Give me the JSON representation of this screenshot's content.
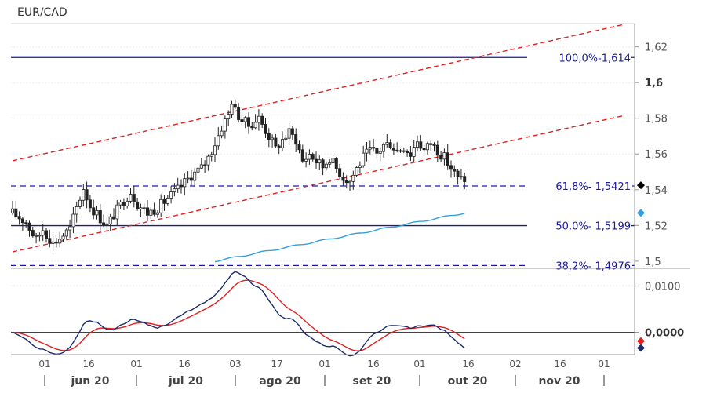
{
  "chart_data": {
    "type": "candlestick",
    "title": "EUR/CAD",
    "price_axis": {
      "ylim": [
        1.496,
        1.633
      ],
      "ticks": [
        1.5,
        1.52,
        1.54,
        1.56,
        1.58,
        1.6,
        1.62
      ],
      "tick_labels": [
        "1,5",
        "1,52",
        "1,54",
        "1,56",
        "1,58",
        "1,6",
        "1,62"
      ],
      "bold_tick": "1,6"
    },
    "osc_axis": {
      "ylim": [
        -0.0045,
        0.0135
      ],
      "ticks": [
        0.0,
        0.01
      ],
      "tick_labels": [
        "0,0000",
        "0,0100"
      ],
      "bold_tick": "0,0000"
    },
    "x_axis": {
      "day_ticks": [
        "01",
        "16",
        "01",
        "16",
        "03",
        "17",
        "01",
        "16",
        "01",
        "16",
        "02",
        "16",
        "01"
      ],
      "months": [
        "jun 20",
        "jul 20",
        "ago 20",
        "set 20",
        "out 20",
        "nov 20"
      ]
    },
    "fib_levels": [
      {
        "label": "100,0%-1,614",
        "value": 1.614,
        "style": "solid"
      },
      {
        "label": "61,8%- 1,5421",
        "value": 1.5421,
        "style": "dashed"
      },
      {
        "label": "50,0%- 1,5199",
        "value": 1.5199,
        "style": "solid"
      },
      {
        "label": "38,2%- 1,4976",
        "value": 1.4976,
        "style": "dashed"
      }
    ],
    "channel_lines": [
      {
        "from": [
          0,
          1.5052
        ],
        "to": [
          181,
          1.5814
        ]
      },
      {
        "from": [
          0,
          1.5562
        ],
        "to": [
          181,
          1.6324
        ]
      }
    ],
    "moving_average": {
      "from": [
        60,
        1.5
      ],
      "to": [
        134,
        1.527
      ]
    },
    "ohlc": [],
    "oscillator": {
      "macd": [],
      "signal": []
    },
    "markers": [
      {
        "axis": "price",
        "value": 1.5425,
        "color": "#000000"
      },
      {
        "axis": "price",
        "value": 1.527,
        "color": "#30a0e0"
      },
      {
        "axis": "osc",
        "value": -0.0019,
        "color": "#e02020"
      },
      {
        "axis": "osc",
        "value": -0.0034,
        "color": "#1a2a6a"
      }
    ],
    "colors": {
      "candle": "#222222",
      "fib": "#1a1aa0",
      "channel": "#e02020",
      "ma": "#30a0e0",
      "macd": "#1a2a6a",
      "signal": "#e02020",
      "grid": "#d0d0d0"
    }
  }
}
